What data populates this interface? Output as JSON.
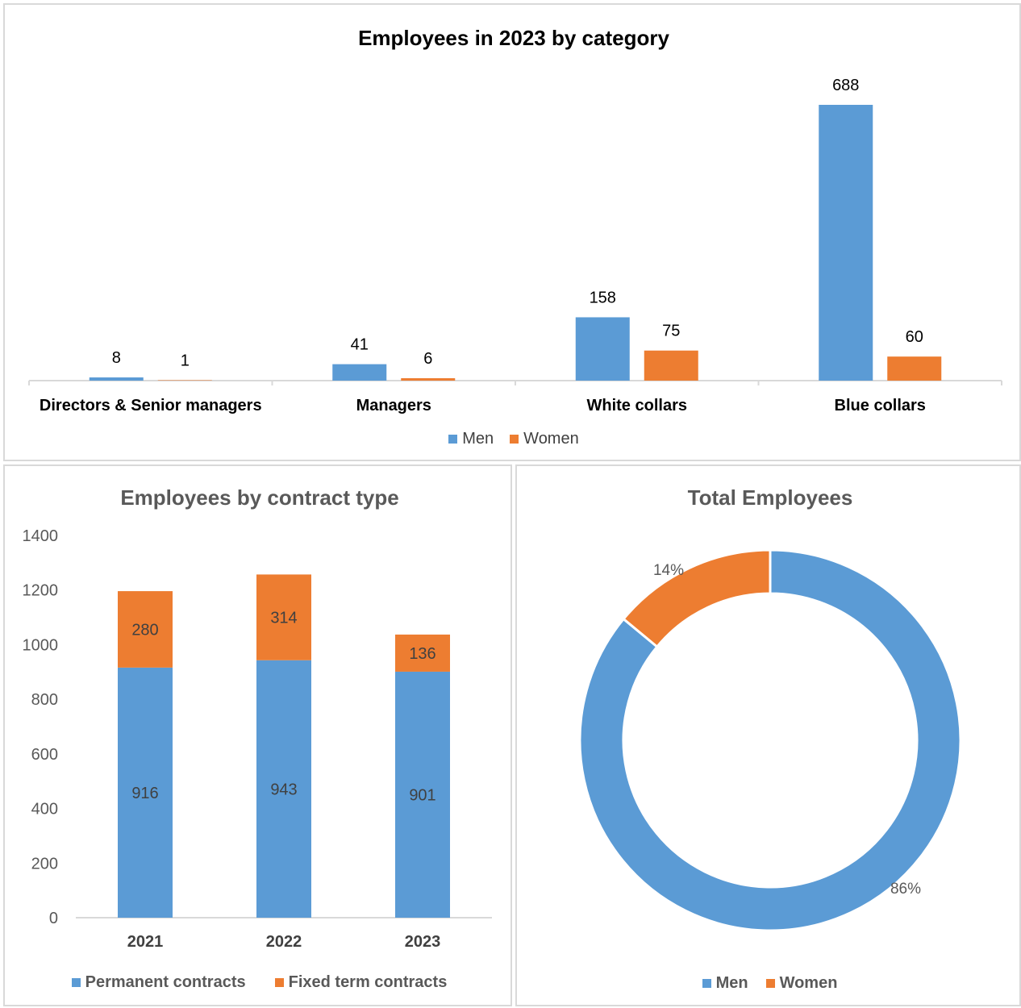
{
  "colors": {
    "men": "#5b9bd5",
    "women": "#ed7d31",
    "axis": "#d9d9d9"
  },
  "chart_data": [
    {
      "type": "bar",
      "title": "Employees in 2023 by category",
      "categories": [
        "Directors & Senior managers",
        "Managers",
        "White collars",
        "Blue collars"
      ],
      "series": [
        {
          "name": "Men",
          "values": [
            8,
            41,
            158,
            688
          ]
        },
        {
          "name": "Women",
          "values": [
            1,
            6,
            75,
            60
          ]
        }
      ],
      "ylim": [
        0,
        688
      ],
      "legend": "bottom",
      "grid": false
    },
    {
      "type": "bar",
      "stacked": true,
      "title": "Employees by contract type",
      "categories": [
        "2021",
        "2022",
        "2023"
      ],
      "series": [
        {
          "name": "Permanent contracts",
          "values": [
            916,
            943,
            901
          ]
        },
        {
          "name": "Fixed term contracts",
          "values": [
            280,
            314,
            136
          ]
        }
      ],
      "ylim": [
        0,
        1400
      ],
      "yticks": [
        "0",
        "200",
        "400",
        "600",
        "800",
        "1000",
        "1200",
        "1400"
      ],
      "legend": "bottom",
      "grid": false
    },
    {
      "type": "pie",
      "donut": true,
      "title": "Total Employees",
      "labels": [
        "Men",
        "Women"
      ],
      "values": [
        86,
        14
      ],
      "value_labels": [
        "86%",
        "14%"
      ],
      "legend": "bottom"
    }
  ]
}
